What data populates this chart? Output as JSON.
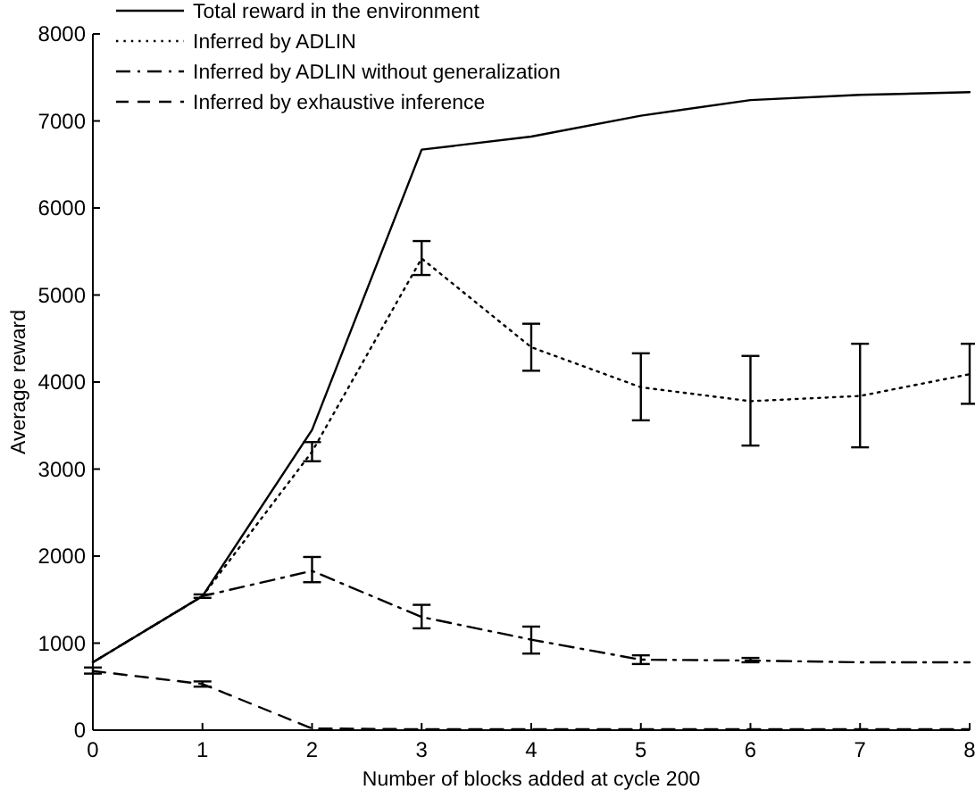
{
  "chart_data": {
    "type": "line",
    "xlabel": "Number of blocks added at cycle 200",
    "ylabel": "Average reward",
    "x": [
      0,
      1,
      2,
      3,
      4,
      5,
      6,
      7,
      8
    ],
    "xlim": [
      0,
      8
    ],
    "xticks": [
      0,
      1,
      2,
      3,
      4,
      5,
      6,
      7,
      8
    ],
    "ylim": [
      0,
      8000
    ],
    "yticks": [
      0,
      1000,
      2000,
      3000,
      4000,
      5000,
      6000,
      7000,
      8000
    ],
    "grid": false,
    "legend": "top left",
    "marker": "none",
    "series": [
      {
        "name": "Total reward in the environment",
        "color": "#000000",
        "line_style": "solid",
        "values": [
          780,
          1540,
          3450,
          6670,
          6820,
          7060,
          7240,
          7300,
          7330
        ]
      },
      {
        "name": "Inferred by ADLIN",
        "color": "#000000",
        "line_style": "dotted",
        "values": [
          780,
          1540,
          3200,
          5420,
          4400,
          3940,
          3780,
          3840,
          4090
        ],
        "errors": [
          null,
          null,
          [
            3090,
            3310
          ],
          [
            5230,
            5620
          ],
          [
            4130,
            4670
          ],
          [
            3560,
            4330
          ],
          [
            3270,
            4300
          ],
          [
            3250,
            4440
          ],
          [
            3750,
            4440
          ]
        ]
      },
      {
        "name": "Inferred by ADLIN without generalization",
        "color": "#000000",
        "line_style": "dashdot",
        "values": [
          780,
          1540,
          1830,
          1300,
          1040,
          810,
          800,
          780,
          780
        ],
        "errors": [
          null,
          [
            1520,
            1560
          ],
          [
            1700,
            1990
          ],
          [
            1170,
            1440
          ],
          [
            880,
            1190
          ],
          [
            760,
            860
          ],
          [
            780,
            830
          ],
          null,
          null
        ]
      },
      {
        "name": "Inferred by exhaustive inference",
        "color": "#000000",
        "line_style": "dashed",
        "values": [
          680,
          530,
          20,
          10,
          10,
          10,
          10,
          10,
          10
        ],
        "errors": [
          [
            650,
            720
          ],
          [
            500,
            560
          ],
          null,
          null,
          null,
          null,
          null,
          null,
          null
        ]
      }
    ]
  }
}
